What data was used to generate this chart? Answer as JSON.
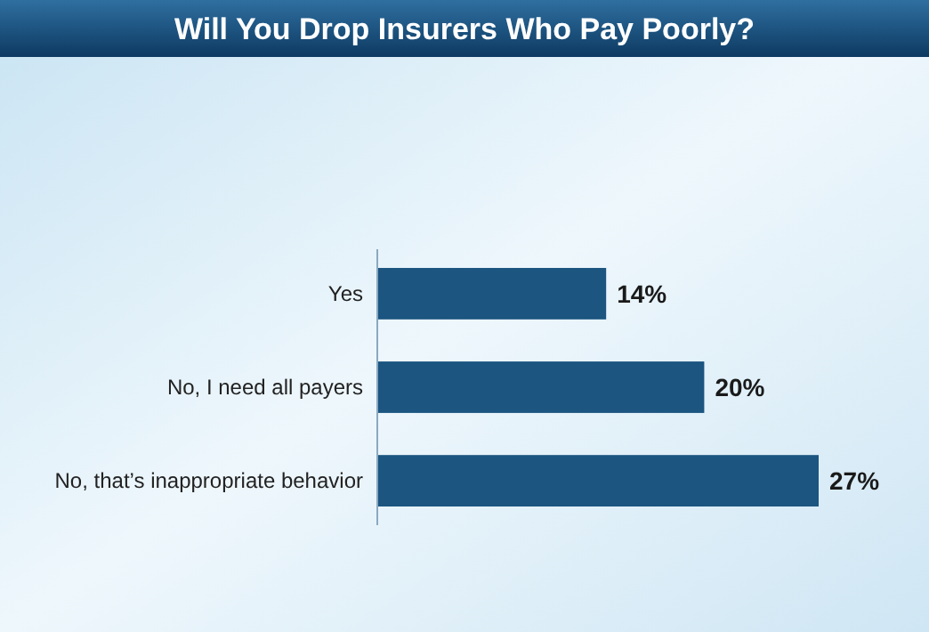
{
  "chart_data": {
    "type": "bar",
    "orientation": "horizontal",
    "title": "Will You Drop Insurers Who Pay Poorly?",
    "categories": [
      "Yes",
      "No, I need all payers",
      "No, that’s inappropriate behavior"
    ],
    "values": [
      14,
      20,
      27
    ],
    "value_labels": [
      "14%",
      "20%",
      "27%"
    ],
    "color": "#1b5580"
  }
}
